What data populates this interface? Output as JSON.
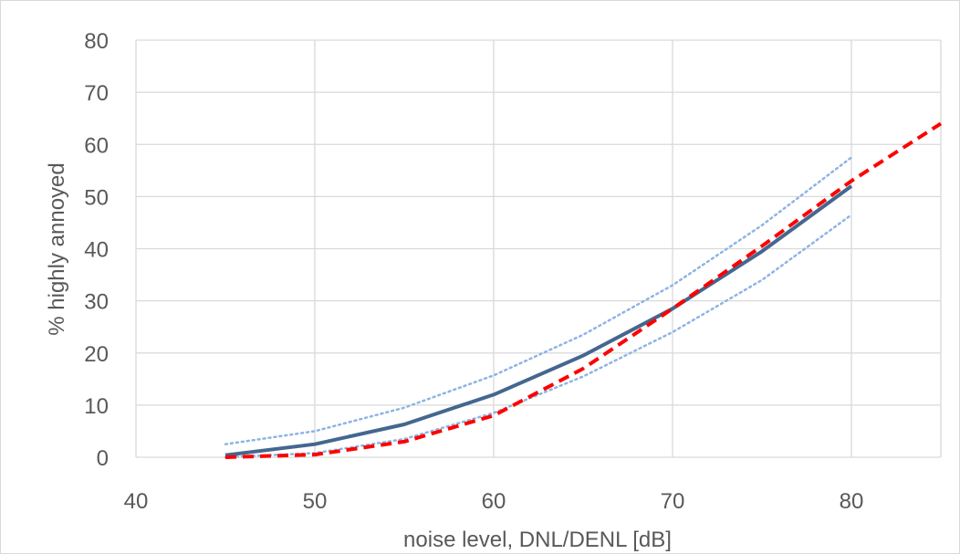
{
  "chart_data": {
    "type": "line",
    "title": "",
    "xlabel": "noise level, DNL/DENL [dB]",
    "ylabel": "% highly annoyed",
    "xlim": [
      40,
      85
    ],
    "ylim": [
      0,
      80
    ],
    "x_ticks": [
      40,
      50,
      60,
      70,
      80
    ],
    "y_ticks": [
      0,
      10,
      20,
      30,
      40,
      50,
      60,
      70,
      80
    ],
    "grid": true,
    "legend": "none",
    "series": [
      {
        "style": "solid",
        "color": "#44678f",
        "x": [
          45,
          50,
          55,
          60,
          65,
          70,
          75,
          80
        ],
        "y": [
          0.4,
          2.5,
          6.3,
          12,
          19.5,
          28.5,
          39.5,
          52
        ]
      },
      {
        "style": "dotted-upper",
        "color": "#8eb4e3",
        "x": [
          45,
          50,
          55,
          60,
          65,
          70,
          75,
          80
        ],
        "y": [
          2.5,
          5,
          9.5,
          15.7,
          23.5,
          33,
          44.5,
          57.5
        ]
      },
      {
        "style": "dotted-lower",
        "color": "#8eb4e3",
        "x": [
          45,
          50,
          55,
          60,
          65,
          70,
          75,
          80
        ],
        "y": [
          0,
          0.8,
          3.5,
          8.5,
          15.5,
          24,
          34,
          46.5
        ]
      },
      {
        "style": "dashed",
        "color": "#ff0000",
        "x": [
          45,
          50,
          55,
          60,
          65,
          70,
          75,
          80,
          85
        ],
        "y": [
          0,
          0.5,
          3,
          8,
          17,
          28.5,
          40.5,
          53,
          64
        ]
      }
    ]
  }
}
